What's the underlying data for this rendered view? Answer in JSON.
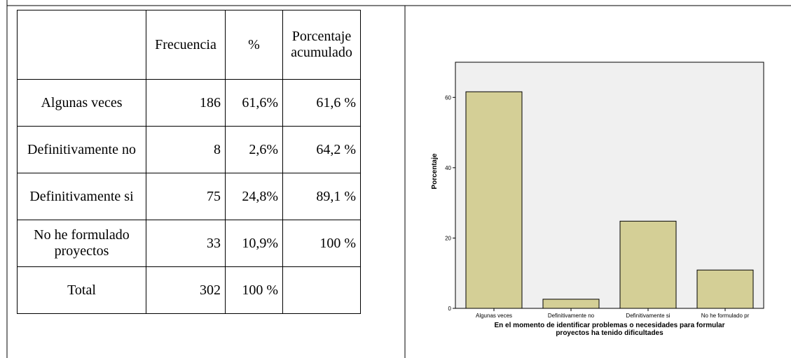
{
  "table": {
    "headers": [
      "",
      "Frecuencia",
      "%",
      "Porcentaje acumulado"
    ],
    "rows": [
      {
        "label": "Algunas veces",
        "freq": "186",
        "pct": "61,6%",
        "cum": "61,6 %"
      },
      {
        "label": "Definitivamente no",
        "freq": "8",
        "pct": "2,6%",
        "cum": "64,2 %"
      },
      {
        "label": "Definitivamente si",
        "freq": "75",
        "pct": "24,8%",
        "cum": "89,1 %"
      },
      {
        "label": "No he formulado proyectos",
        "freq": "33",
        "pct": "10,9%",
        "cum": "100 %"
      },
      {
        "label": "Total",
        "freq": "302",
        "pct": "100 %",
        "cum": ""
      }
    ]
  },
  "chart_data": {
    "type": "bar",
    "categories": [
      "Algunas veces",
      "Definitivamente no",
      "Definitivamente si",
      "No he formulado pr"
    ],
    "values": [
      61.6,
      2.6,
      24.8,
      10.9
    ],
    "xlabel": "En el momento de identificar problemas o necesidades para formular proyectos ha tenido dificultades",
    "xlabel_lines": [
      "En el momento de identificar problemas o necesidades para formular",
      "proyectos ha tenido dificultades"
    ],
    "ylabel": "Porcentaje",
    "yticks": [
      0,
      20,
      40,
      60
    ],
    "ylim": [
      0,
      70
    ],
    "grid": false,
    "bar_color": "#d4cf96",
    "plot_bg": "#f0f0f0"
  }
}
